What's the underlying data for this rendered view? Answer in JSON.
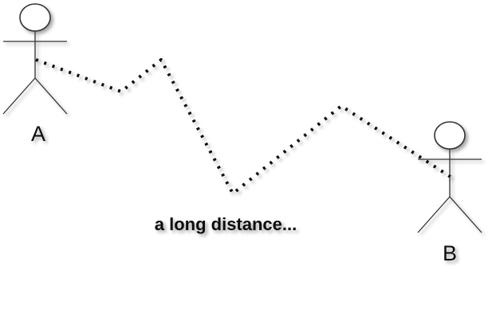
{
  "diagram": {
    "actor_a_label": "A",
    "actor_b_label": "B",
    "caption": "a long distance..."
  }
}
